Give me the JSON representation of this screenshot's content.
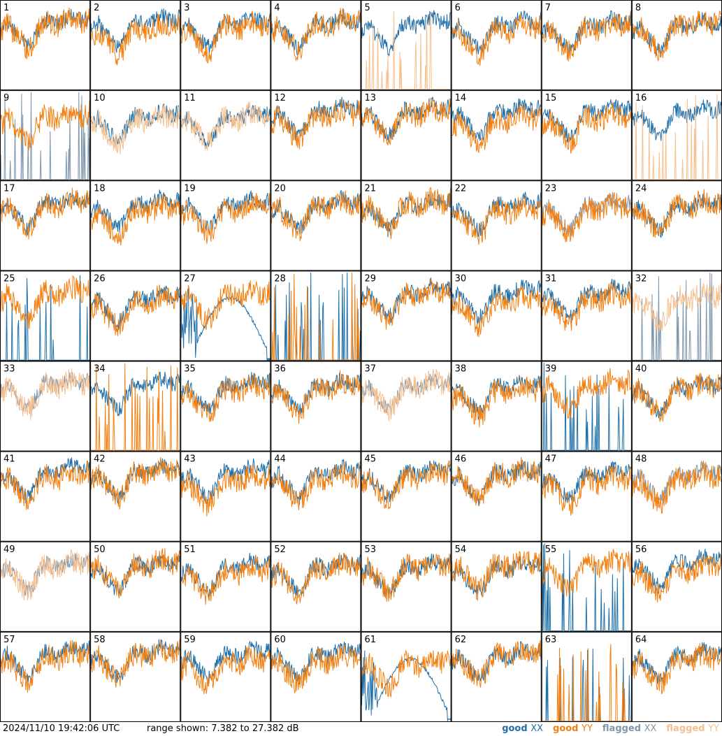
{
  "footer": {
    "timestamp": "2024/11/10 19:42:06 UTC",
    "range_text": "range shown: 7.382 to 27.382 dB"
  },
  "legend": [
    {
      "key": "good",
      "pol": "XX",
      "color": "#1f6fa8",
      "label_color": "#1f6fa8"
    },
    {
      "key": "good",
      "pol": "YY",
      "color": "#f47f0e",
      "label_color": "#f47f0e"
    },
    {
      "key": "flagged",
      "pol": "XX",
      "color": "#7f97ad",
      "label_color": "#7f97ad"
    },
    {
      "key": "flagged",
      "pol": "YY",
      "color": "#f6bf8e",
      "label_color": "#f6bf8e"
    }
  ],
  "chart_data": {
    "type": "line",
    "layout": "small-multiples 8x8",
    "ylim": [
      7.382,
      27.382
    ],
    "yunit": "dB",
    "panels": [
      {
        "id": "1",
        "xx": "good",
        "yy": "good"
      },
      {
        "id": "2",
        "xx": "good",
        "yy": "good"
      },
      {
        "id": "3",
        "xx": "good",
        "yy": "good"
      },
      {
        "id": "4",
        "xx": "good",
        "yy": "good"
      },
      {
        "id": "5",
        "xx": "good",
        "yy": "flagged",
        "yy_spiky": true
      },
      {
        "id": "6",
        "xx": "good",
        "yy": "good"
      },
      {
        "id": "7",
        "xx": "good",
        "yy": "good"
      },
      {
        "id": "8",
        "xx": "good",
        "yy": "good"
      },
      {
        "id": "9",
        "xx": "flagged",
        "yy": "good",
        "xx_spiky": true
      },
      {
        "id": "10",
        "xx": "good",
        "yy": "flagged"
      },
      {
        "id": "11",
        "xx": "good",
        "yy": "flagged"
      },
      {
        "id": "12",
        "xx": "good",
        "yy": "good"
      },
      {
        "id": "13",
        "xx": "good",
        "yy": "good"
      },
      {
        "id": "14",
        "xx": "good",
        "yy": "good"
      },
      {
        "id": "15",
        "xx": "good",
        "yy": "good"
      },
      {
        "id": "16",
        "xx": "good",
        "yy": "flagged",
        "yy_spiky": true
      },
      {
        "id": "17",
        "xx": "good",
        "yy": "good"
      },
      {
        "id": "18",
        "xx": "good",
        "yy": "good"
      },
      {
        "id": "19",
        "xx": "good",
        "yy": "good"
      },
      {
        "id": "20",
        "xx": "good",
        "yy": "good"
      },
      {
        "id": "21",
        "xx": "good",
        "yy": "good"
      },
      {
        "id": "22",
        "xx": "good",
        "yy": "good"
      },
      {
        "id": "23",
        "xx": "flagged",
        "yy": "good"
      },
      {
        "id": "24",
        "xx": "good",
        "yy": "good"
      },
      {
        "id": "25",
        "xx": "good",
        "yy": "good",
        "xx_spiky": true
      },
      {
        "id": "26",
        "xx": "good",
        "yy": "good"
      },
      {
        "id": "27",
        "xx": "good",
        "yy": "good",
        "xx_dome": true
      },
      {
        "id": "28",
        "xx": "good",
        "yy": "good",
        "xx_spiky": true,
        "yy_spiky": true
      },
      {
        "id": "29",
        "xx": "good",
        "yy": "good"
      },
      {
        "id": "30",
        "xx": "good",
        "yy": "good"
      },
      {
        "id": "31",
        "xx": "good",
        "yy": "good"
      },
      {
        "id": "32",
        "xx": "flagged",
        "yy": "flagged",
        "xx_spiky": true
      },
      {
        "id": "33",
        "xx": "flagged",
        "yy": "flagged"
      },
      {
        "id": "34",
        "xx": "good",
        "yy": "good",
        "yy_spiky": true
      },
      {
        "id": "35",
        "xx": "good",
        "yy": "good"
      },
      {
        "id": "36",
        "xx": "good",
        "yy": "good"
      },
      {
        "id": "37",
        "xx": "flagged",
        "yy": "flagged"
      },
      {
        "id": "38",
        "xx": "good",
        "yy": "good"
      },
      {
        "id": "39",
        "xx": "good",
        "yy": "good",
        "xx_spiky": true
      },
      {
        "id": "40",
        "xx": "good",
        "yy": "good"
      },
      {
        "id": "41",
        "xx": "good",
        "yy": "good"
      },
      {
        "id": "42",
        "xx": "good",
        "yy": "good"
      },
      {
        "id": "43",
        "xx": "good",
        "yy": "good"
      },
      {
        "id": "44",
        "xx": "good",
        "yy": "good"
      },
      {
        "id": "45",
        "xx": "good",
        "yy": "good"
      },
      {
        "id": "46",
        "xx": "good",
        "yy": "good"
      },
      {
        "id": "47",
        "xx": "good",
        "yy": "good"
      },
      {
        "id": "48",
        "xx": "flagged",
        "yy": "good"
      },
      {
        "id": "49",
        "xx": "flagged",
        "yy": "flagged"
      },
      {
        "id": "50",
        "xx": "good",
        "yy": "good"
      },
      {
        "id": "51",
        "xx": "good",
        "yy": "good"
      },
      {
        "id": "52",
        "xx": "good",
        "yy": "good"
      },
      {
        "id": "53",
        "xx": "good",
        "yy": "good"
      },
      {
        "id": "54",
        "xx": "good",
        "yy": "good"
      },
      {
        "id": "55",
        "xx": "good",
        "yy": "good",
        "xx_spiky": true
      },
      {
        "id": "56",
        "xx": "good",
        "yy": "good"
      },
      {
        "id": "57",
        "xx": "good",
        "yy": "good"
      },
      {
        "id": "58",
        "xx": "good",
        "yy": "good"
      },
      {
        "id": "59",
        "xx": "good",
        "yy": "good"
      },
      {
        "id": "60",
        "xx": "good",
        "yy": "good"
      },
      {
        "id": "61",
        "xx": "good",
        "yy": "good",
        "xx_dome": true
      },
      {
        "id": "62",
        "xx": "good",
        "yy": "good"
      },
      {
        "id": "63",
        "xx": "good",
        "yy": "good",
        "xx_spiky": true,
        "yy_spiky": true
      },
      {
        "id": "64",
        "xx": "good",
        "yy": "good"
      }
    ]
  }
}
